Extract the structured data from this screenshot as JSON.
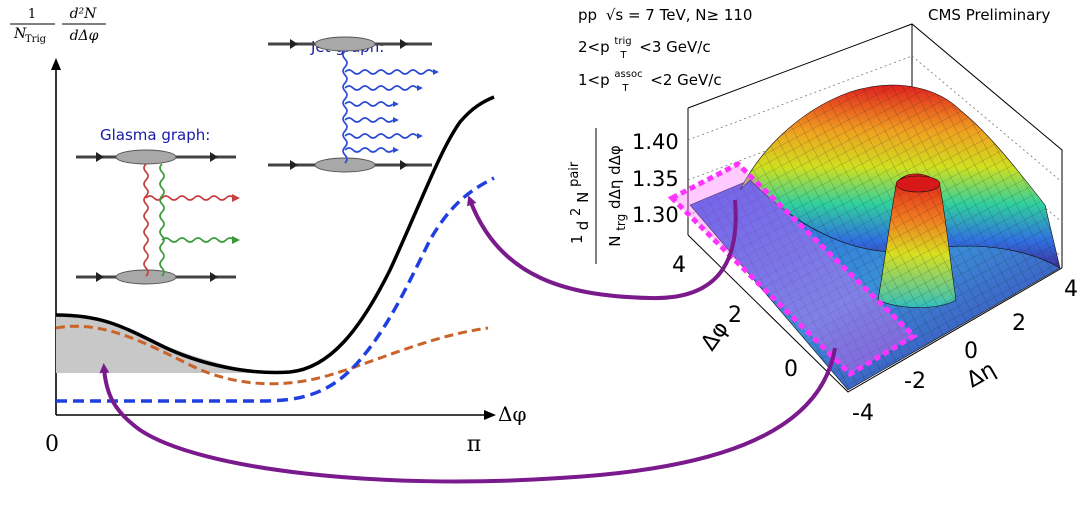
{
  "left_plot": {
    "y_axis_label_fraction_num": "1",
    "y_axis_label_fraction_den": "N",
    "y_axis_label_den_sub": "Trig",
    "y_axis_label_deriv_num": "d²N",
    "y_axis_label_deriv_den": "dΔφ",
    "x_axis_label": "Δφ",
    "x_tick_zero": "0",
    "x_tick_pi": "π",
    "glasma_label": "Glasma graph:",
    "jet_label": "Jet graph:"
  },
  "right_plot": {
    "header_line1_prefix": "pp",
    "header_line1_sqrt": "√s = 7 TeV, N≥ 110",
    "header_line2_prefix": "2<p",
    "header_line2_sup": "trig",
    "header_line2_sub": "T",
    "header_line2_suffix": "<3 GeV/c",
    "header_line3_prefix": "1<p",
    "header_line3_sup": "assoc",
    "header_line3_sub": "T",
    "header_line3_suffix": "<2 GeV/c",
    "preliminary": "CMS Preliminary",
    "z_label_num_prefix": "d",
    "z_label_num_sup": "2",
    "z_label_num_N": "N",
    "z_label_num_pair": "pair",
    "z_label_one": "1",
    "z_label_den_N": "N",
    "z_label_den_trg": "trg",
    "z_label_den_rest": "dΔη dΔφ",
    "z_ticks": [
      "1.40",
      "1.35",
      "1.30"
    ],
    "phi_label": "Δφ",
    "phi_ticks": [
      "4",
      "2",
      "0"
    ],
    "eta_label": "Δη",
    "eta_ticks": [
      "4",
      "2",
      "0",
      "-2",
      "-4"
    ]
  },
  "colors": {
    "total_curve": "#000000",
    "jet_curve": "#1f3fe0",
    "glasma_curve": "#c8642a",
    "shaded_region": "#c8c8c8",
    "arrow": "#7a1a8c",
    "highlight_box": "#ff33ff",
    "gluon_red": "#c84040",
    "gluon_green": "#3a9a3a",
    "gluon_blue": "#2a4ad8"
  }
}
